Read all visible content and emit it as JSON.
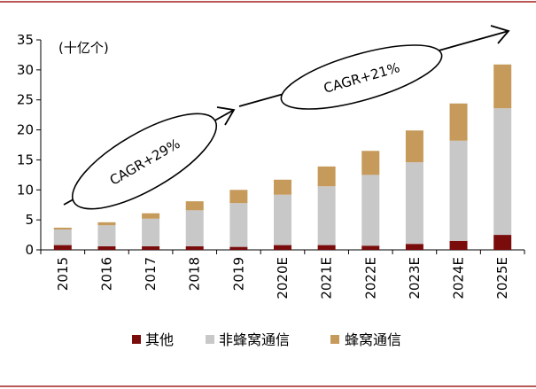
{
  "chart_data": {
    "type": "bar",
    "stacked": true,
    "unit_label": "(十亿个)",
    "categories": [
      "2015",
      "2016",
      "2017",
      "2018",
      "2019",
      "2020E",
      "2021E",
      "2022E",
      "2023E",
      "2024E",
      "2025E"
    ],
    "ylim": [
      0,
      35
    ],
    "yticks": [
      0,
      5,
      10,
      15,
      20,
      25,
      30,
      35
    ],
    "series": [
      {
        "name": "其他",
        "color": "#7a0c0c",
        "values": [
          0.8,
          0.6,
          0.6,
          0.6,
          0.5,
          0.8,
          0.8,
          0.7,
          1.0,
          1.5,
          2.5
        ]
      },
      {
        "name": "非蜂窝通信",
        "color": "#c8c8c8",
        "values": [
          2.6,
          3.5,
          4.6,
          6.0,
          7.3,
          8.4,
          9.8,
          11.8,
          13.6,
          16.7,
          21.1
        ]
      },
      {
        "name": "蜂窝通信",
        "color": "#c59a5a",
        "values": [
          0.3,
          0.5,
          0.9,
          1.5,
          2.2,
          2.5,
          3.3,
          4.0,
          5.3,
          6.2,
          7.3
        ]
      }
    ],
    "annotations": [
      {
        "text": "CAGR+29%"
      },
      {
        "text": "CAGR+21%"
      }
    ],
    "legend_position": "bottom",
    "grid": false,
    "frame_color": "#a32020"
  }
}
